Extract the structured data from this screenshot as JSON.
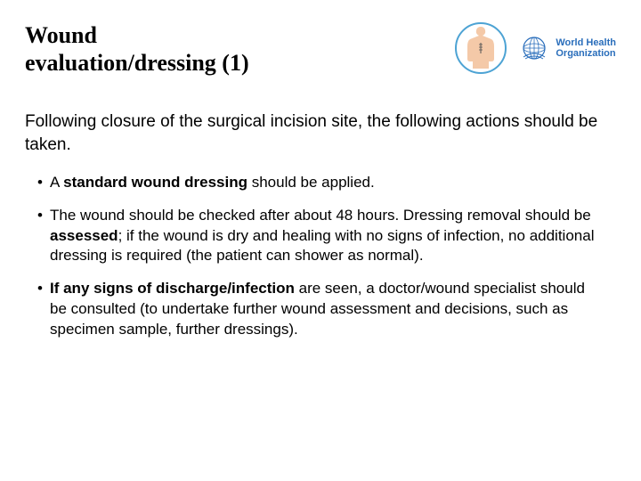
{
  "title_line1": "Wound",
  "title_line2": "evaluation/dressing (1)",
  "who_label_line1": "World Health",
  "who_label_line2": "Organization",
  "intro": "Following closure of the surgical incision site, the following actions should be taken.",
  "bullets": [
    {
      "parts": [
        {
          "t": "A ",
          "b": false
        },
        {
          "t": "standard wound dressing",
          "b": true
        },
        {
          "t": " should be applied.",
          "b": false
        }
      ]
    },
    {
      "parts": [
        {
          "t": "The wound should be checked after about 48 hours. Dressing removal should be ",
          "b": false
        },
        {
          "t": "assessed",
          "b": true
        },
        {
          "t": "; if the wound is dry and healing with no signs of infection, no additional dressing is required (the patient can shower as normal).",
          "b": false
        }
      ]
    },
    {
      "parts": [
        {
          "t": "If any signs of discharge/infection",
          "b": true
        },
        {
          "t": " are seen, a doctor/wound specialist should be consulted (to undertake further wound assessment and decisions, such as specimen sample, further dressings).",
          "b": false
        }
      ]
    }
  ],
  "colors": {
    "who_blue": "#2a6ebb",
    "skin": "#f4c9a8",
    "circle_stroke": "#4da3d4"
  }
}
